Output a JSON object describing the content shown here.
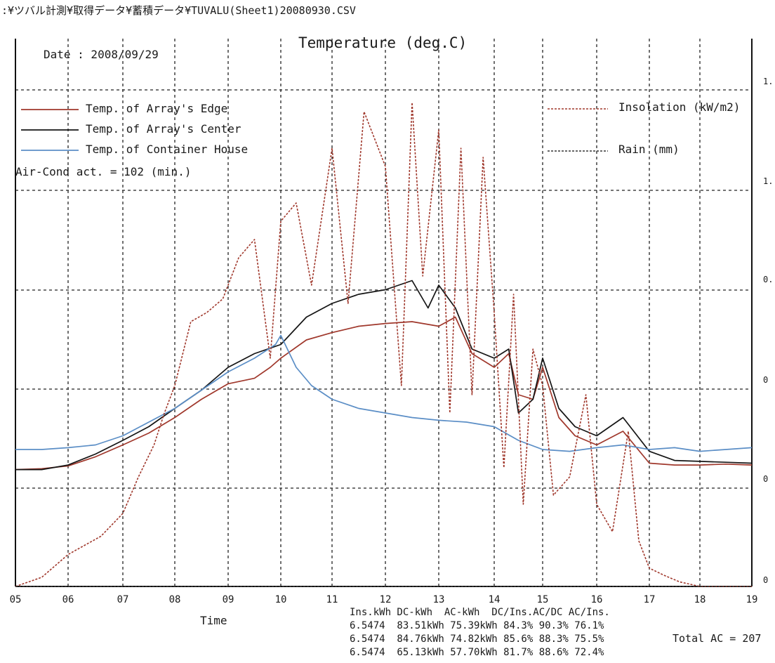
{
  "header": {
    "filepath": ":¥ツバル計測¥取得データ¥蓄積データ¥TUVALU(Sheet1)20080930.CSV"
  },
  "colors": {
    "edge": "#a0382c",
    "center": "#151515",
    "container": "#5b8ec6",
    "insolation": "#a0382c",
    "grid": "#222222"
  },
  "chart_data": {
    "type": "line",
    "title": "Temperature (deg.C)",
    "date_label": "Date : 2008/09/29",
    "xlabel": "Time",
    "x_ticks": [
      "05",
      "06",
      "07",
      "08",
      "09",
      "10",
      "11",
      "12",
      "13",
      "14",
      "15",
      "16",
      "17",
      "18",
      "19"
    ],
    "right_ticks": [
      "1.",
      "1.",
      "0.",
      "0",
      "0",
      "0"
    ],
    "xlim": [
      5,
      19
    ],
    "ylim": [
      0,
      6
    ],
    "grid": true,
    "legend_placement": "top-left",
    "legend_left": [
      {
        "label": "Temp. of Array's Edge",
        "color": "#a0382c"
      },
      {
        "label": "Temp. of Array's Center",
        "color": "#151515"
      },
      {
        "label": "Temp. of Container House",
        "color": "#5b8ec6"
      }
    ],
    "legend_right": [
      {
        "label": "Insolation (kW/m2)",
        "color": "#a0382c"
      },
      {
        "label": "Rain (mm)",
        "color": "#333333"
      }
    ],
    "aircond_note": "Air-Cond act. = 102 (min.)",
    "series": [
      {
        "name": "Temp. of Array's Edge",
        "style": "solid",
        "color": "#a0382c",
        "x": [
          5,
          5.5,
          6,
          6.5,
          7,
          7.5,
          8,
          8.5,
          9,
          9.5,
          9.8,
          10,
          10.5,
          11,
          11.5,
          12,
          12.5,
          13,
          13.3,
          13.6,
          14,
          14.3,
          14.5,
          14.8,
          15,
          15.3,
          15.6,
          16,
          16.5,
          17,
          17.5,
          18,
          18.5,
          19
        ],
        "y": [
          1.28,
          1.29,
          1.32,
          1.42,
          1.55,
          1.68,
          1.85,
          2.05,
          2.22,
          2.28,
          2.4,
          2.5,
          2.7,
          2.78,
          2.85,
          2.88,
          2.9,
          2.85,
          2.95,
          2.55,
          2.4,
          2.55,
          2.1,
          2.05,
          2.4,
          1.85,
          1.65,
          1.55,
          1.7,
          1.35,
          1.33,
          1.33,
          1.34,
          1.33
        ]
      },
      {
        "name": "Temp. of Array's Center",
        "style": "solid",
        "color": "#151515",
        "x": [
          5,
          5.5,
          6,
          6.5,
          7,
          7.5,
          8,
          8.5,
          9,
          9.5,
          10,
          10.5,
          11,
          11.5,
          12,
          12.5,
          12.8,
          13,
          13.3,
          13.6,
          14,
          14.3,
          14.5,
          14.8,
          15,
          15.3,
          15.6,
          16,
          16.5,
          17,
          17.5,
          18,
          18.5,
          19
        ],
        "y": [
          1.28,
          1.28,
          1.33,
          1.45,
          1.6,
          1.75,
          1.95,
          2.15,
          2.4,
          2.55,
          2.65,
          2.95,
          3.1,
          3.2,
          3.25,
          3.35,
          3.05,
          3.3,
          3.05,
          2.6,
          2.5,
          2.6,
          1.9,
          2.05,
          2.5,
          1.95,
          1.75,
          1.65,
          1.85,
          1.48,
          1.38,
          1.37,
          1.36,
          1.35
        ]
      },
      {
        "name": "Temp. of Container House",
        "style": "solid",
        "color": "#5b8ec6",
        "x": [
          5,
          5.5,
          6,
          6.5,
          7,
          7.5,
          8,
          8.5,
          9,
          9.5,
          9.9,
          10,
          10.3,
          10.6,
          11,
          11.5,
          12,
          12.5,
          13,
          13.5,
          14,
          14.5,
          15,
          15.5,
          16,
          16.5,
          17,
          17.5,
          18,
          18.5,
          19
        ],
        "y": [
          1.5,
          1.5,
          1.52,
          1.55,
          1.65,
          1.8,
          1.95,
          2.15,
          2.35,
          2.5,
          2.65,
          2.75,
          2.4,
          2.2,
          2.05,
          1.95,
          1.9,
          1.85,
          1.82,
          1.8,
          1.75,
          1.6,
          1.5,
          1.48,
          1.52,
          1.55,
          1.5,
          1.52,
          1.48,
          1.5,
          1.52
        ]
      },
      {
        "name": "Insolation (kW/m2)",
        "style": "dashed",
        "color": "#a0382c",
        "x": [
          5,
          5.5,
          6,
          6.3,
          6.6,
          7,
          7.3,
          7.6,
          7.8,
          8,
          8.3,
          8.6,
          8.9,
          9.2,
          9.5,
          9.8,
          10,
          10.3,
          10.6,
          11,
          11.3,
          11.6,
          12,
          12.3,
          12.5,
          12.7,
          13,
          13.2,
          13.4,
          13.6,
          13.8,
          14,
          14.2,
          14.4,
          14.6,
          14.8,
          15,
          15.2,
          15.5,
          15.8,
          16,
          16.3,
          16.6,
          16.8,
          17,
          17.3,
          17.6,
          18,
          18.5,
          19
        ],
        "y": [
          0,
          0.1,
          0.35,
          0.45,
          0.55,
          0.8,
          1.2,
          1.55,
          1.9,
          2.2,
          2.9,
          3.0,
          3.15,
          3.6,
          3.8,
          2.5,
          4.0,
          4.2,
          3.3,
          4.8,
          3.1,
          5.2,
          4.6,
          2.2,
          5.3,
          3.4,
          5.0,
          1.9,
          4.8,
          2.1,
          4.7,
          3.0,
          1.3,
          3.2,
          0.9,
          2.6,
          2.2,
          1.0,
          1.2,
          2.1,
          0.9,
          0.6,
          1.7,
          0.5,
          0.2,
          0.12,
          0.05,
          0,
          0,
          0
        ]
      },
      {
        "name": "Rain (mm)",
        "style": "dashed",
        "color": "#333333",
        "x": [
          5,
          19
        ],
        "y": [
          0,
          0
        ]
      }
    ]
  },
  "summary": {
    "headers": "Ins.kWh DC-kWh  AC-kWh  DC/Ins.AC/DC AC/Ins.",
    "row1": "6.5474  83.51kWh 75.39kWh 84.3% 90.3% 76.1%",
    "row2": "6.5474  84.76kWh 74.82kWh 85.6% 88.3% 75.5%",
    "row3": "6.5474  65.13kWh 57.70kWh 81.7% 88.6% 72.4%",
    "total_ac": "Total AC = 207"
  }
}
